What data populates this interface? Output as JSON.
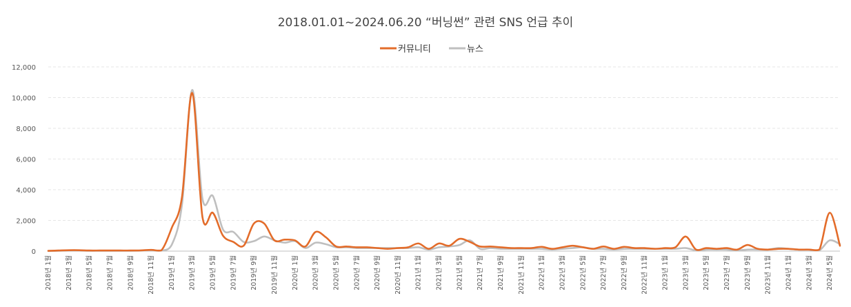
{
  "chart_data": {
    "type": "line",
    "title": "2018.01.01~2024.06.20 “버닝썬” 관련 SNS 언급 추이",
    "xlabel": "",
    "ylabel": "",
    "ylim": [
      0,
      12000
    ],
    "yticks": [
      "0",
      "2,000",
      "4,000",
      "6,000",
      "8,000",
      "10,000",
      "12,000"
    ],
    "legend_position": "top-center",
    "categories": [
      "2018년 1월",
      "2018년 2월",
      "2018년 3월",
      "2018년 4월",
      "2018년 5월",
      "2018년 6월",
      "2018년 7월",
      "2018년 8월",
      "2018년 9월",
      "2018년 10월",
      "2018년 11월",
      "2018년 12월",
      "2019년 1월",
      "2019년 2월",
      "2019년 3월",
      "2019년 4월",
      "2019년 5월",
      "2019년 6월",
      "2019년 7월",
      "2019년 8월",
      "2019년 9월",
      "2019년 10월",
      "2019년 11월",
      "2019년 12월",
      "2020년 1월",
      "2020년 2월",
      "2020년 3월",
      "2020년 4월",
      "2020년 5월",
      "2020년 6월",
      "2020년 7월",
      "2020년 8월",
      "2020년 9월",
      "2020년 10월",
      "2020년 11월",
      "2020년 12월",
      "2021년 1월",
      "2021년 2월",
      "2021년 3월",
      "2021년 4월",
      "2021년 5월",
      "2021년 6월",
      "2021년 7월",
      "2021년 8월",
      "2021년 9월",
      "2021년 10월",
      "2021년 11월",
      "2021년 12월",
      "2022년 1월",
      "2022년 2월",
      "2022년 3월",
      "2022년 4월",
      "2022년 5월",
      "2022년 6월",
      "2022년 7월",
      "2022년 8월",
      "2022년 9월",
      "2022년 10월",
      "2022년 11월",
      "2022년 12월",
      "2023년 1월",
      "2023년 2월",
      "2023년 3월",
      "2023년 4월",
      "2023년 5월",
      "2023년 6월",
      "2023년 7월",
      "2023년 8월",
      "2023년 9월",
      "2023년 10월",
      "2023년 11월",
      "2023년 12월",
      "2024년 1월",
      "2024년 2월",
      "2024년 3월",
      "2024년 4월",
      "2024년 5월",
      "2024년 6월"
    ],
    "tick_labels": [
      "2018년 1월",
      "2018년 3월",
      "2018년 5월",
      "2018년 7월",
      "2018년 9월",
      "2018년 11월",
      "2019년 1월",
      "2019년 3월",
      "2019년 5월",
      "2019년 7월",
      "2019년 9월",
      "2019년 11월",
      "2020년 1월",
      "2020년 3월",
      "2020년 5월",
      "2020년 7월",
      "2020년 9월",
      "2020년 11월",
      "2021년 1월",
      "2021년 3월",
      "2021년 5월",
      "2021년 7월",
      "2021년 9월",
      "2021년 11월",
      "2022년 1월",
      "2022년 3월",
      "2022년 5월",
      "2022년 7월",
      "2022년 9월",
      "2022년 11월",
      "2023년 1월",
      "2023년 3월",
      "2023년 5월",
      "2023년 7월",
      "2023년 9월",
      "2023년 11월",
      "2024년 1월",
      "2024년 3월",
      "2024년 5월"
    ],
    "series": [
      {
        "name": "커뮤니티",
        "color": "#e36c2a",
        "values": [
          20,
          40,
          60,
          60,
          40,
          40,
          40,
          40,
          40,
          50,
          80,
          50,
          1500,
          3500,
          10300,
          2200,
          2500,
          1000,
          600,
          350,
          1800,
          1800,
          700,
          750,
          700,
          300,
          1250,
          900,
          300,
          300,
          250,
          250,
          200,
          150,
          200,
          250,
          500,
          150,
          500,
          350,
          800,
          600,
          300,
          300,
          250,
          200,
          200,
          200,
          280,
          150,
          250,
          350,
          250,
          150,
          300,
          150,
          280,
          200,
          200,
          150,
          200,
          250,
          950,
          100,
          200,
          150,
          200,
          100,
          400,
          150,
          100,
          150,
          150,
          100,
          100,
          100,
          2500,
          350
        ]
      },
      {
        "name": "뉴스",
        "color": "#bfbfbf",
        "values": [
          10,
          20,
          30,
          30,
          20,
          20,
          20,
          20,
          20,
          30,
          40,
          30,
          400,
          3000,
          10500,
          3400,
          3600,
          1400,
          1250,
          600,
          650,
          950,
          700,
          550,
          650,
          200,
          550,
          450,
          250,
          250,
          200,
          200,
          200,
          200,
          200,
          200,
          250,
          100,
          250,
          300,
          400,
          700,
          150,
          200,
          150,
          150,
          150,
          150,
          150,
          100,
          150,
          200,
          250,
          150,
          150,
          100,
          150,
          150,
          150,
          150,
          150,
          150,
          200,
          50,
          100,
          100,
          100,
          50,
          100,
          100,
          100,
          200,
          150,
          100,
          100,
          50,
          700,
          450
        ]
      }
    ]
  }
}
